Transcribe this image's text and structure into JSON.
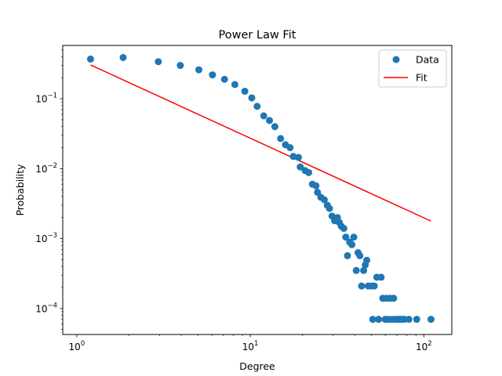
{
  "chart_data": {
    "type": "scatter",
    "title": "Power Law Fit",
    "xlabel": "Degree",
    "ylabel": "Probability",
    "xscale": "log",
    "yscale": "log",
    "xlim": [
      0.83,
      145
    ],
    "ylim": [
      4.25e-05,
      0.58
    ],
    "xticks": [
      {
        "value": 1,
        "base": "10",
        "exp": "0"
      },
      {
        "value": 10,
        "base": "10",
        "exp": "1"
      },
      {
        "value": 100,
        "base": "10",
        "exp": "2"
      }
    ],
    "yticks": [
      {
        "value": 0.0001,
        "base": "10",
        "exp": "−4"
      },
      {
        "value": 0.001,
        "base": "10",
        "exp": "−3"
      },
      {
        "value": 0.01,
        "base": "10",
        "exp": "−2"
      },
      {
        "value": 0.1,
        "base": "10",
        "exp": "−1"
      }
    ],
    "legend": {
      "position": "upper right"
    },
    "series": [
      {
        "name": "Data",
        "kind": "scatter",
        "color": "#1f77b4",
        "points": [
          [
            1.2,
            0.37
          ],
          [
            1.85,
            0.39
          ],
          [
            2.95,
            0.34
          ],
          [
            3.95,
            0.3
          ],
          [
            5.05,
            0.26
          ],
          [
            6.05,
            0.22
          ],
          [
            7.1,
            0.19
          ],
          [
            8.15,
            0.16
          ],
          [
            9.3,
            0.128
          ],
          [
            10.2,
            0.103
          ],
          [
            10.95,
            0.078
          ],
          [
            11.95,
            0.057
          ],
          [
            12.9,
            0.049
          ],
          [
            13.85,
            0.04
          ],
          [
            14.95,
            0.027
          ],
          [
            15.95,
            0.022
          ],
          [
            16.95,
            0.02
          ],
          [
            17.7,
            0.015
          ],
          [
            18.95,
            0.0145
          ],
          [
            19.4,
            0.0106
          ],
          [
            20.7,
            0.0094
          ],
          [
            21.7,
            0.0088
          ],
          [
            22.8,
            0.006
          ],
          [
            23.9,
            0.0057
          ],
          [
            24.4,
            0.0046
          ],
          [
            25.5,
            0.0039
          ],
          [
            26.7,
            0.0036
          ],
          [
            27.8,
            0.003
          ],
          [
            28.6,
            0.0027
          ],
          [
            29.6,
            0.0021
          ],
          [
            30.6,
            0.0018
          ],
          [
            31.8,
            0.002
          ],
          [
            32.6,
            0.0017
          ],
          [
            33.5,
            0.0015
          ],
          [
            34.6,
            0.0014
          ],
          [
            35.5,
            0.00105
          ],
          [
            36.3,
            0.00057
          ],
          [
            37.4,
            0.00089
          ],
          [
            38.5,
            0.00082
          ],
          [
            39.5,
            0.00105
          ],
          [
            40.8,
            0.00035
          ],
          [
            41.8,
            0.00063
          ],
          [
            42.8,
            0.00057
          ],
          [
            43.8,
            0.00021
          ],
          [
            45.0,
            0.00035
          ],
          [
            46.0,
            0.00042
          ],
          [
            46.9,
            0.00049
          ],
          [
            47.8,
            0.00021
          ],
          [
            49.8,
            0.00021
          ],
          [
            50.8,
            7e-05
          ],
          [
            51.8,
            0.00021
          ],
          [
            53.6,
            0.00028
          ],
          [
            54.9,
            7e-05
          ],
          [
            56.8,
            0.00028
          ],
          [
            58.0,
            0.00014
          ],
          [
            59.9,
            7e-05
          ],
          [
            61.0,
            0.00014
          ],
          [
            62.5,
            7e-05
          ],
          [
            64.0,
            0.00014
          ],
          [
            65.7,
            7e-05
          ],
          [
            67.0,
            0.00014
          ],
          [
            69.0,
            7e-05
          ],
          [
            71.0,
            7e-05
          ],
          [
            73.0,
            7e-05
          ],
          [
            75.0,
            7e-05
          ],
          [
            77.0,
            7e-05
          ],
          [
            82.0,
            7e-05
          ],
          [
            91.0,
            7e-05
          ],
          [
            110.0,
            7e-05
          ]
        ]
      },
      {
        "name": "Fit",
        "kind": "line",
        "color": "#ff0000",
        "points": [
          [
            1.2,
            0.305
          ],
          [
            110.0,
            0.00178
          ]
        ]
      }
    ]
  }
}
